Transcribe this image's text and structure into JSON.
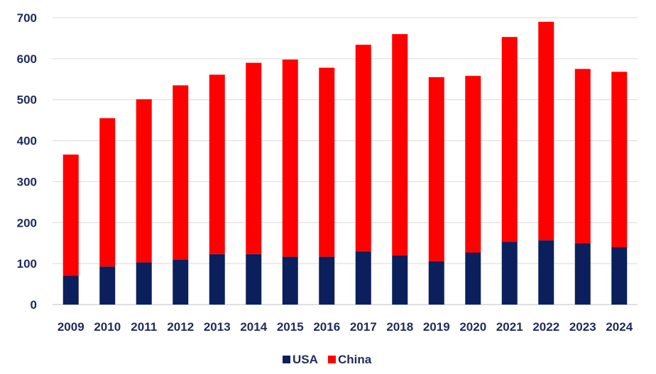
{
  "chart_data": {
    "type": "bar",
    "stacked": true,
    "title": "",
    "xlabel": "",
    "ylabel": "",
    "ylim": [
      0,
      700
    ],
    "yticks": [
      0,
      100,
      200,
      300,
      400,
      500,
      600,
      700
    ],
    "grid": true,
    "legend_position": "bottom",
    "categories": [
      "2009",
      "2010",
      "2011",
      "2012",
      "2013",
      "2014",
      "2015",
      "2016",
      "2017",
      "2018",
      "2019",
      "2020",
      "2021",
      "2022",
      "2023",
      "2024"
    ],
    "series": [
      {
        "name": "USA",
        "color": "#0b1f5c",
        "values": [
          70,
          93,
          103,
          110,
          123,
          123,
          117,
          117,
          130,
          120,
          106,
          127,
          153,
          157,
          150,
          140
        ]
      },
      {
        "name": "China",
        "color": "#ff0000",
        "values": [
          296,
          362,
          398,
          425,
          438,
          467,
          481,
          461,
          504,
          540,
          449,
          431,
          500,
          533,
          425,
          428
        ]
      }
    ]
  }
}
